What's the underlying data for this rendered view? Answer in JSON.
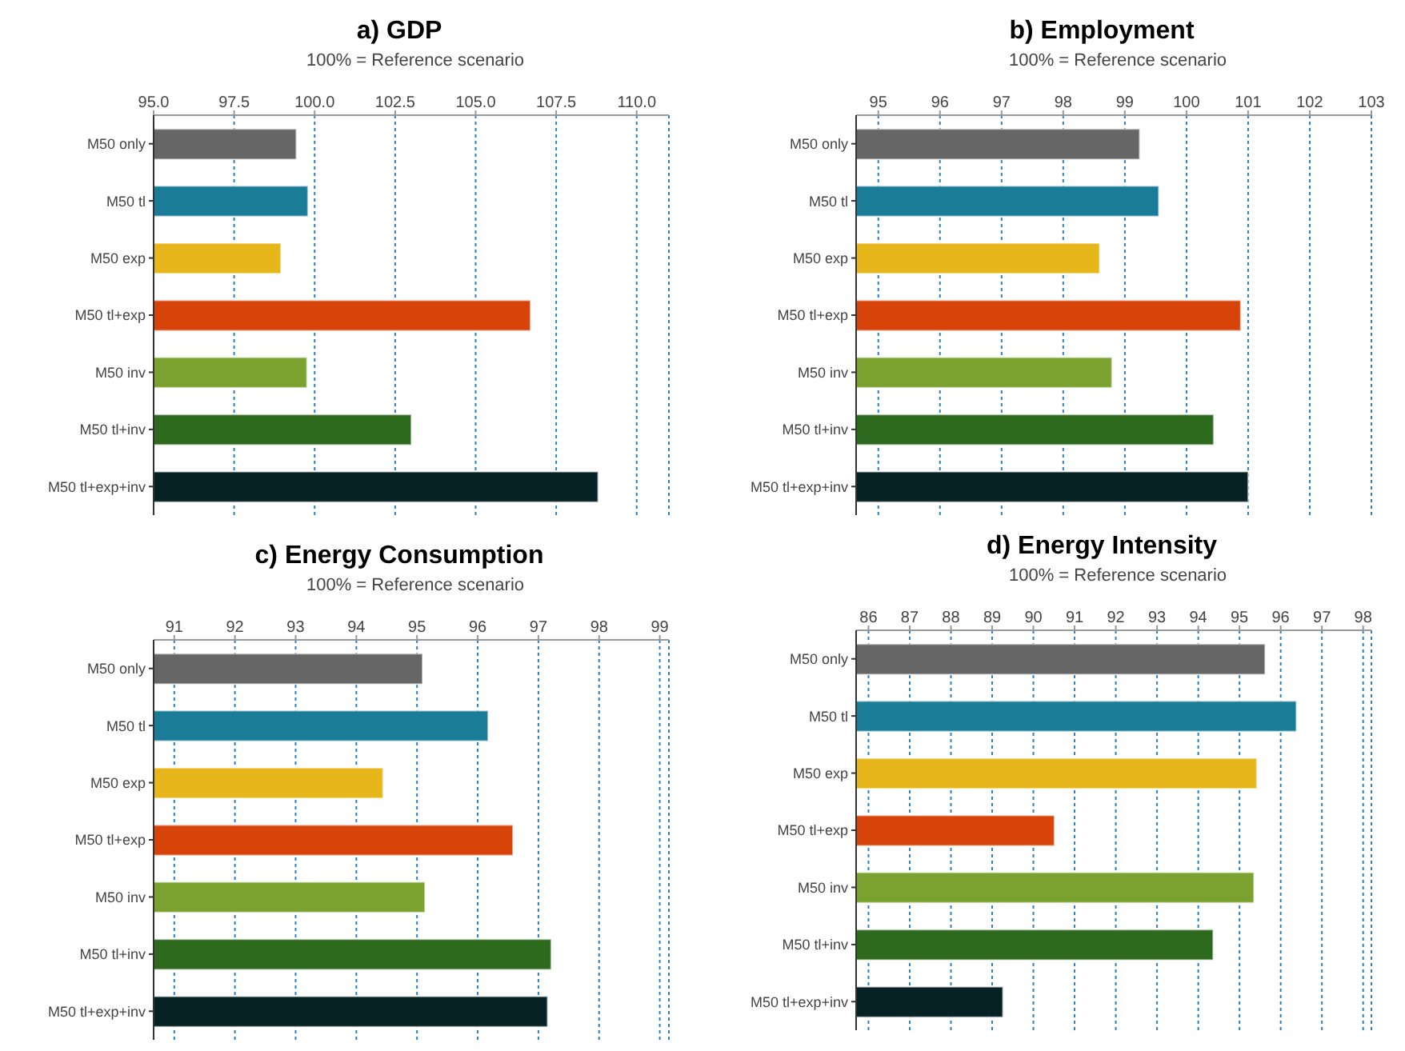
{
  "chart_data": [
    {
      "type": "bar",
      "orientation": "horizontal",
      "title": "a) GDP",
      "xlabel": "100% = Reference scenario",
      "categories": [
        "M50 only",
        "M50 tl",
        "M50 exp",
        "M50 tl+exp",
        "M50 inv",
        "M50 tl+inv",
        "M50 tl+exp+inv"
      ],
      "values": [
        99.43,
        99.79,
        98.95,
        106.7,
        99.76,
        103.0,
        108.8
      ],
      "colors": [
        "#666666",
        "#1a7c96",
        "#e6b61a",
        "#d6440a",
        "#7ba22e",
        "#2e6a1e",
        "#062224"
      ],
      "xlim": [
        95,
        111
      ],
      "xticks": [
        {
          "value": 95,
          "label": "95.0"
        },
        {
          "value": 97.5,
          "label": "97.5"
        },
        {
          "value": 100,
          "label": "100.0"
        },
        {
          "value": 102.5,
          "label": "102.5"
        },
        {
          "value": 105,
          "label": "105.0"
        },
        {
          "value": 107.5,
          "label": "107.5"
        },
        {
          "value": 110,
          "label": "110.0"
        }
      ],
      "grid": "x"
    },
    {
      "type": "bar",
      "orientation": "horizontal",
      "title": "b) Employment",
      "xlabel": "100% = Reference scenario",
      "categories": [
        "M50 only",
        "M50 tl",
        "M50 exp",
        "M50 tl+exp",
        "M50 inv",
        "M50 tl+inv",
        "M50 tl+exp+inv"
      ],
      "values": [
        99.24,
        99.55,
        98.59,
        100.88,
        98.79,
        100.44,
        101.0
      ],
      "colors": [
        "#666666",
        "#1a7c96",
        "#e6b61a",
        "#d6440a",
        "#7ba22e",
        "#2e6a1e",
        "#062224"
      ],
      "xlim": [
        94.64,
        103
      ],
      "xticks": [
        95,
        96,
        97,
        98,
        99,
        100,
        101,
        102,
        103
      ],
      "grid": "x"
    },
    {
      "type": "bar",
      "orientation": "horizontal",
      "title": "c) Energy Consumption",
      "xlabel": "100% = Reference scenario",
      "categories": [
        "M50 only",
        "M50 tl",
        "M50 exp",
        "M50 tl+exp",
        "M50 inv",
        "M50 tl+inv",
        "M50 tl+exp+inv"
      ],
      "values": [
        95.09,
        96.17,
        94.44,
        96.58,
        95.13,
        97.21,
        97.15
      ],
      "colors": [
        "#666666",
        "#1a7c96",
        "#e6b61a",
        "#d6440a",
        "#7ba22e",
        "#2e6a1e",
        "#062224"
      ],
      "xlim": [
        90.66,
        99.15
      ],
      "xticks": [
        91,
        92,
        93,
        94,
        95,
        96,
        97,
        98,
        99
      ],
      "grid": "x"
    },
    {
      "type": "bar",
      "orientation": "horizontal",
      "title": "d) Energy Intensity",
      "xlabel": "100% = Reference scenario",
      "categories": [
        "M50 only",
        "M50 tl",
        "M50 exp",
        "M50 tl+exp",
        "M50 inv",
        "M50 tl+inv",
        "M50 tl+exp+inv"
      ],
      "values": [
        95.62,
        96.38,
        95.42,
        90.51,
        95.35,
        94.36,
        89.26
      ],
      "colors": [
        "#666666",
        "#1a7c96",
        "#e6b61a",
        "#d6440a",
        "#7ba22e",
        "#2e6a1e",
        "#062224"
      ],
      "xlim": [
        85.7,
        98.2
      ],
      "xticks": [
        86,
        87,
        88,
        89,
        90,
        91,
        92,
        93,
        94,
        95,
        96,
        97,
        98
      ],
      "grid": "x"
    }
  ]
}
